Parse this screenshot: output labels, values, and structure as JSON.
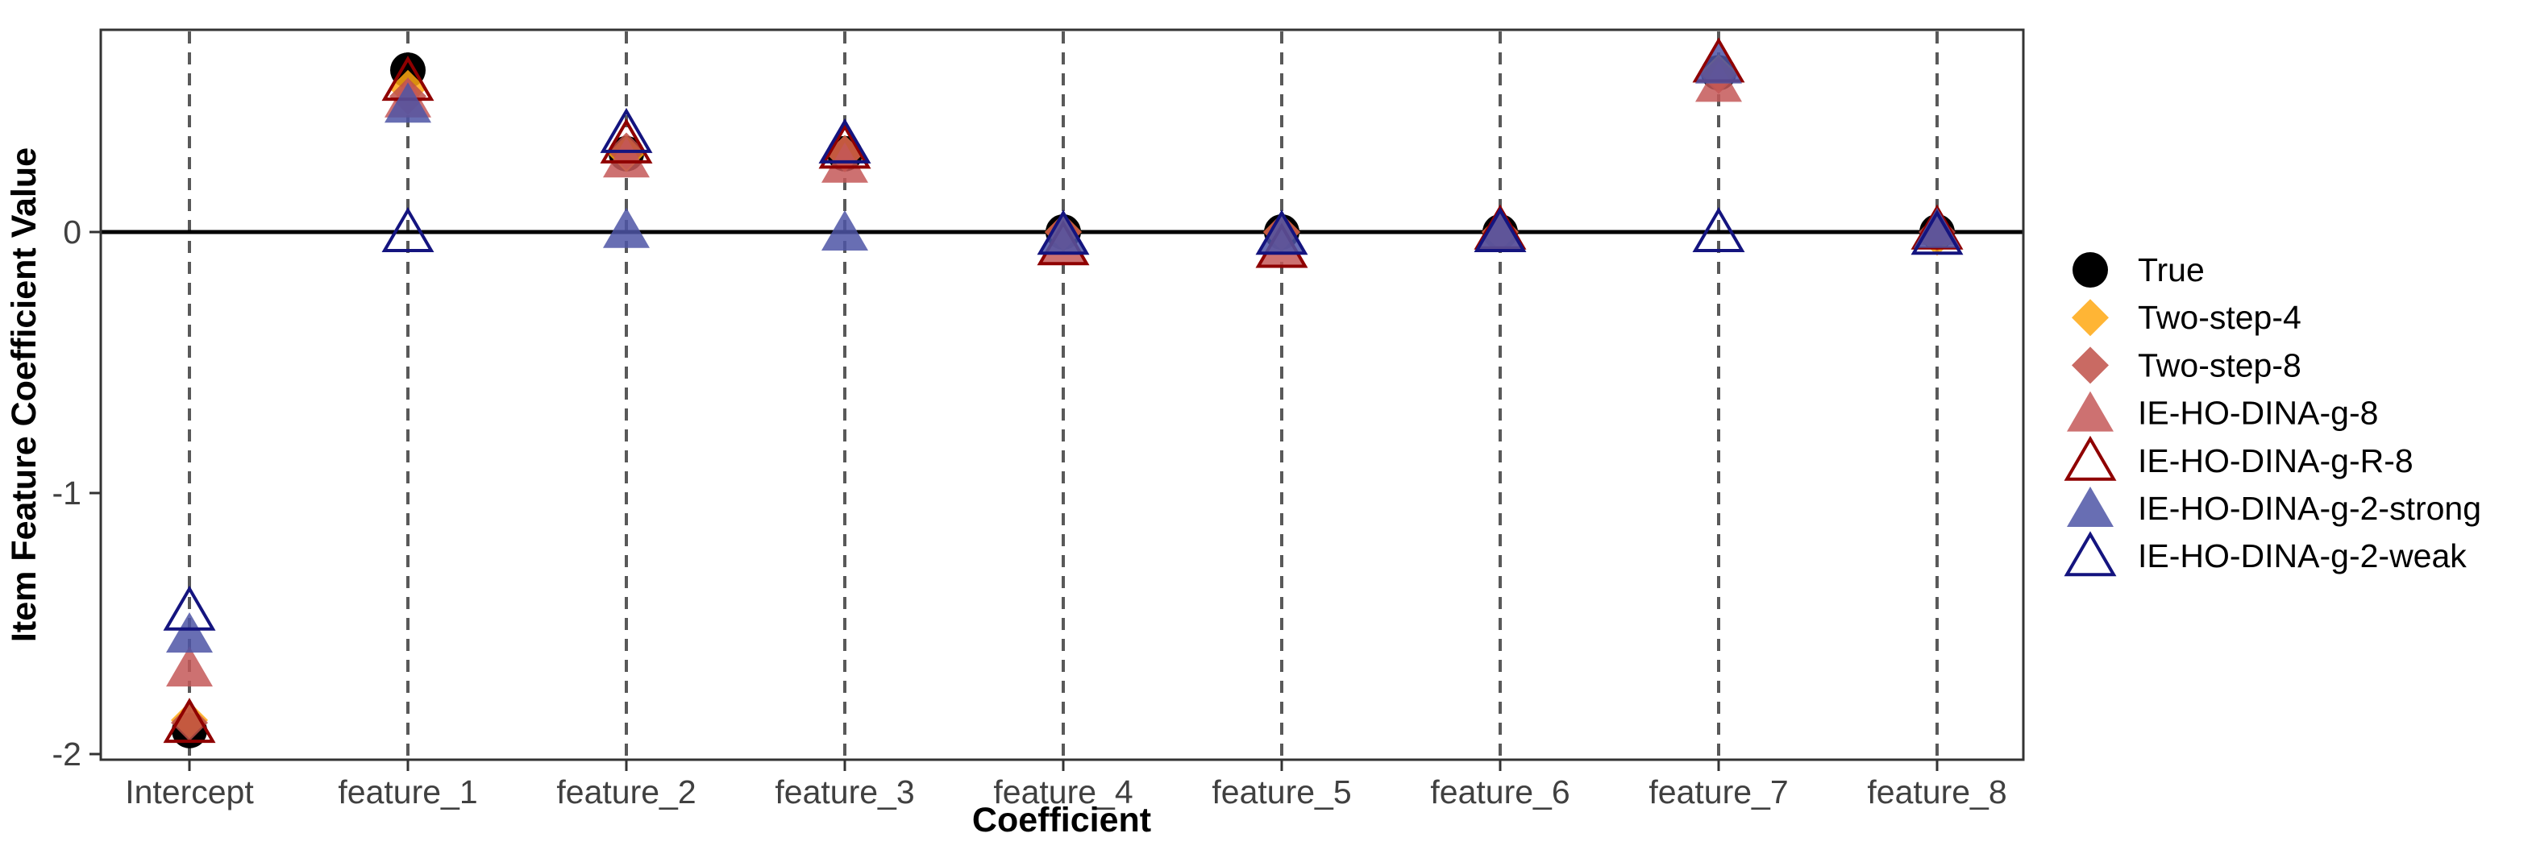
{
  "chart_data": {
    "type": "scatter",
    "title": "",
    "xlabel": "Coefficient",
    "ylabel": "Item Feature Coefficient Value",
    "categories": [
      "Intercept",
      "feature_1",
      "feature_2",
      "feature_3",
      "feature_4",
      "feature_5",
      "feature_6",
      "feature_7",
      "feature_8"
    ],
    "yticks": {
      "values": [
        0,
        -1,
        -2
      ],
      "labels": [
        "0",
        "-1",
        "-2"
      ]
    },
    "ylim": [
      -2.02,
      0.78
    ],
    "zero_line": true,
    "grid": "vertical-dashed-per-category",
    "legend_position": "right",
    "series": [
      {
        "name": "True",
        "marker": "circle",
        "fill": "#000000",
        "stroke": "#000000",
        "opacity": 1.0,
        "values": [
          -1.91,
          0.62,
          0.3,
          0.3,
          0.0,
          0.0,
          0.0,
          0.61,
          0.0
        ]
      },
      {
        "name": "Two-step-4",
        "marker": "diamond",
        "fill": "#FFA812",
        "stroke": "#FFA812",
        "opacity": 0.85,
        "values": [
          -1.87,
          0.55,
          0.3,
          0.3,
          0.0,
          0.0,
          0.0,
          0.61,
          -0.02
        ]
      },
      {
        "name": "Two-step-8",
        "marker": "diamond",
        "fill": "#C05048",
        "stroke": "#C05048",
        "opacity": 0.85,
        "values": [
          -1.88,
          0.52,
          0.31,
          0.3,
          0.0,
          0.0,
          0.0,
          0.6,
          0.0
        ]
      },
      {
        "name": "IE-HO-DINA-g-8",
        "marker": "triangle",
        "fill": "#C45858",
        "stroke": "#C45858",
        "opacity": 0.85,
        "values": [
          -1.67,
          0.51,
          0.28,
          0.26,
          -0.05,
          -0.06,
          0.01,
          0.57,
          0.02
        ]
      },
      {
        "name": "IE-HO-DINA-g-R-8",
        "marker": "triangle-open",
        "fill": "none",
        "stroke": "#8F0000",
        "opacity": 1.0,
        "values": [
          -1.88,
          0.58,
          0.34,
          0.32,
          -0.05,
          -0.06,
          0.01,
          0.65,
          0.01
        ]
      },
      {
        "name": "IE-HO-DINA-g-2-strong",
        "marker": "triangle",
        "fill": "#4E55A6",
        "stroke": "#4E55A6",
        "opacity": 0.85,
        "values": [
          -1.54,
          0.49,
          0.01,
          0.0,
          -0.01,
          -0.01,
          0.0,
          0.64,
          0.01
        ]
      },
      {
        "name": "IE-HO-DINA-g-2-weak",
        "marker": "triangle-open",
        "fill": "none",
        "stroke": "#14147F",
        "opacity": 1.0,
        "values": [
          -1.45,
          0.0,
          0.38,
          0.34,
          -0.01,
          -0.01,
          0.0,
          0.0,
          -0.01
        ]
      }
    ]
  },
  "legend": {
    "items": [
      "True",
      "Two-step-4",
      "Two-step-8",
      "IE-HO-DINA-g-8",
      "IE-HO-DINA-g-R-8",
      "IE-HO-DINA-g-2-strong",
      "IE-HO-DINA-g-2-weak"
    ]
  },
  "style_colors": {
    "panel_border": "#333333",
    "gridline": "#595959",
    "zero_line": "#000000",
    "tick_label": "#404040",
    "axis_title": "#000000"
  }
}
